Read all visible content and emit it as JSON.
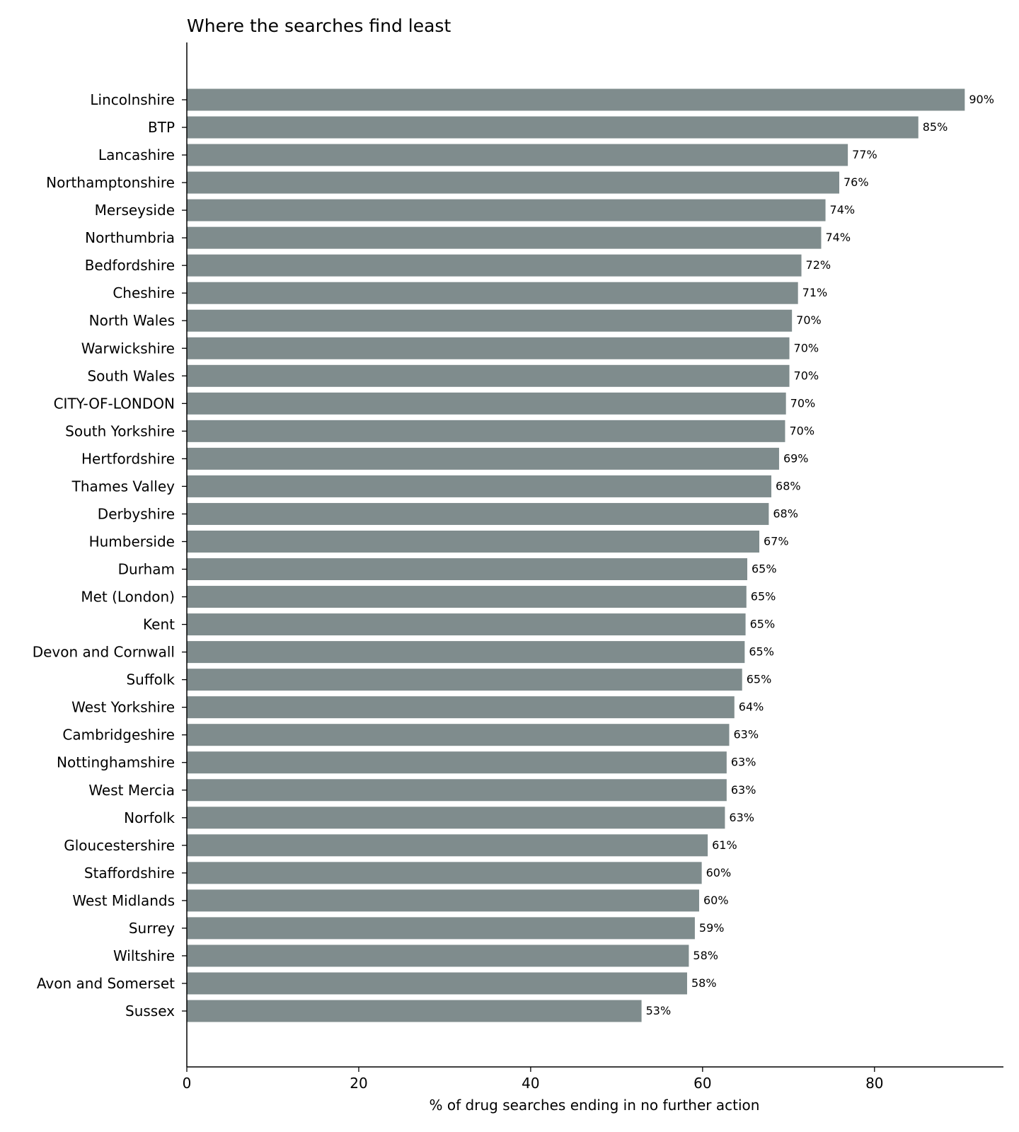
{
  "chart_data": {
    "type": "bar",
    "orientation": "horizontal",
    "title": "Where the searches find least",
    "xlabel": "% of drug searches ending in no further action",
    "ylabel": "",
    "xlim": [
      0,
      95
    ],
    "xticks": [
      0,
      20,
      40,
      60,
      80
    ],
    "bar_color": "#7f8c8d",
    "categories": [
      "Lincolnshire",
      "BTP",
      "Lancashire",
      "Northamptonshire",
      "Merseyside",
      "Northumbria",
      "Bedfordshire",
      "Cheshire",
      "North Wales",
      "Warwickshire",
      "South Wales",
      "CITY-OF-LONDON",
      "South Yorkshire",
      "Hertfordshire",
      "Thames Valley",
      "Derbyshire",
      "Humberside",
      "Durham",
      "Met (London)",
      "Kent",
      "Devon and Cornwall",
      "Suffolk",
      "West Yorkshire",
      "Cambridgeshire",
      "Nottinghamshire",
      "West Mercia",
      "Norfolk",
      "Gloucestershire",
      "Staffordshire",
      "West Midlands",
      "Surrey",
      "Wiltshire",
      "Avon and Somerset",
      "Sussex"
    ],
    "values": [
      90.5,
      85.1,
      76.9,
      75.9,
      74.3,
      73.8,
      71.5,
      71.1,
      70.4,
      70.1,
      70.1,
      69.7,
      69.6,
      68.9,
      68.0,
      67.7,
      66.6,
      65.2,
      65.1,
      65.0,
      64.9,
      64.6,
      63.7,
      63.1,
      62.8,
      62.8,
      62.6,
      60.6,
      59.9,
      59.6,
      59.1,
      58.4,
      58.2,
      52.9
    ],
    "data_labels": [
      "90%",
      "85%",
      "77%",
      "76%",
      "74%",
      "74%",
      "72%",
      "71%",
      "70%",
      "70%",
      "70%",
      "70%",
      "70%",
      "69%",
      "68%",
      "68%",
      "67%",
      "65%",
      "65%",
      "65%",
      "65%",
      "65%",
      "64%",
      "63%",
      "63%",
      "63%",
      "63%",
      "61%",
      "60%",
      "60%",
      "59%",
      "58%",
      "58%",
      "53%"
    ],
    "grid": false,
    "legend": "none"
  }
}
